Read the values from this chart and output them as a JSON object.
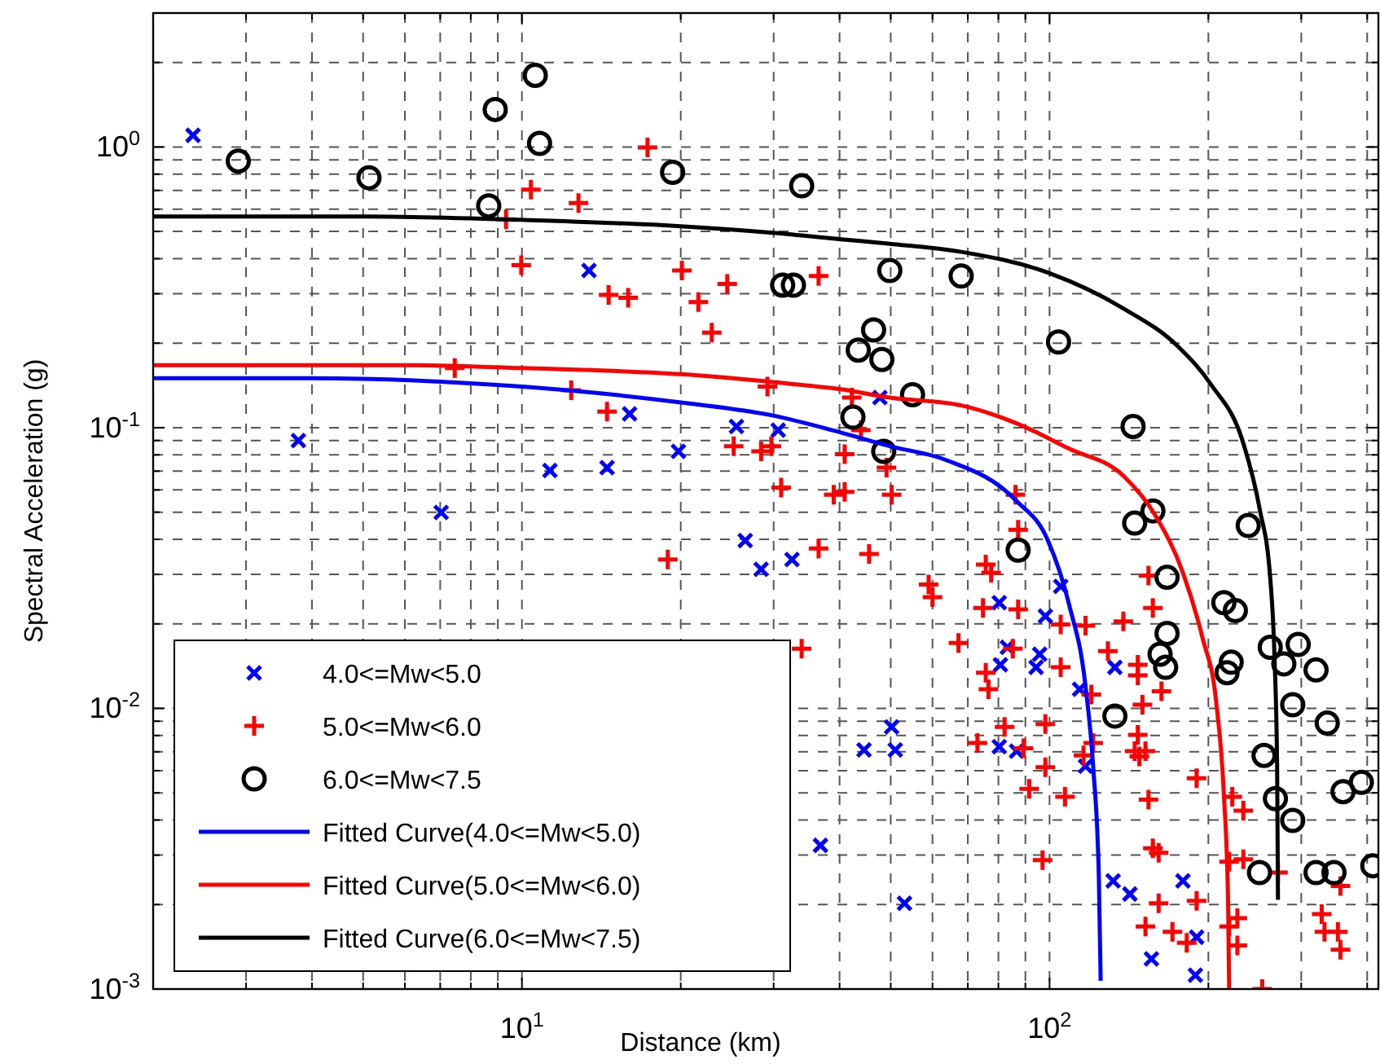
{
  "chart_data": {
    "type": "scatter",
    "xlabel": "Distance (km)",
    "ylabel": "Spectral Acceleration (g)",
    "log": "xy",
    "xlim": [
      2,
      420
    ],
    "ylim": [
      0.001,
      3
    ],
    "xticks": [
      {
        "value": 2,
        "label": null
      },
      {
        "value": 3,
        "label": null
      },
      {
        "value": 4,
        "label": null
      },
      {
        "value": 5,
        "label": null
      },
      {
        "value": 6,
        "label": null
      },
      {
        "value": 7,
        "label": null
      },
      {
        "value": 8,
        "label": null
      },
      {
        "value": 9,
        "label": null
      },
      {
        "value": 10,
        "label": "10$^{1}$"
      },
      {
        "value": 20,
        "label": null
      },
      {
        "value": 30,
        "label": null
      },
      {
        "value": 40,
        "label": null
      },
      {
        "value": 50,
        "label": null
      },
      {
        "value": 60,
        "label": null
      },
      {
        "value": 70,
        "label": null
      },
      {
        "value": 80,
        "label": null
      },
      {
        "value": 90,
        "label": null
      },
      {
        "value": 100,
        "label": "10$^{2}$"
      },
      {
        "value": 200,
        "label": null
      },
      {
        "value": 300,
        "label": null
      },
      {
        "value": 400,
        "label": null
      }
    ],
    "yticks": [
      {
        "value": 0.001,
        "label": "10$^{-3}$"
      },
      {
        "value": 0.002,
        "label": null
      },
      {
        "value": 0.003,
        "label": null
      },
      {
        "value": 0.004,
        "label": null
      },
      {
        "value": 0.005,
        "label": null
      },
      {
        "value": 0.006,
        "label": null
      },
      {
        "value": 0.007,
        "label": null
      },
      {
        "value": 0.008,
        "label": null
      },
      {
        "value": 0.009,
        "label": null
      },
      {
        "value": 0.01,
        "label": "10$^{-2}$"
      },
      {
        "value": 0.02,
        "label": null
      },
      {
        "value": 0.03,
        "label": null
      },
      {
        "value": 0.04,
        "label": null
      },
      {
        "value": 0.05,
        "label": null
      },
      {
        "value": 0.06,
        "label": null
      },
      {
        "value": 0.07,
        "label": null
      },
      {
        "value": 0.08,
        "label": null
      },
      {
        "value": 0.09,
        "label": null
      },
      {
        "value": 0.1,
        "label": "10$^{-1}$"
      },
      {
        "value": 0.2,
        "label": null
      },
      {
        "value": 0.3,
        "label": null
      },
      {
        "value": 0.4,
        "label": null
      },
      {
        "value": 0.5,
        "label": null
      },
      {
        "value": 0.6,
        "label": null
      },
      {
        "value": 0.7,
        "label": null
      },
      {
        "value": 0.8,
        "label": null
      },
      {
        "value": 0.9,
        "label": null
      },
      {
        "value": 1,
        "label": "10$^{0}$"
      },
      {
        "value": 2,
        "label": null
      }
    ],
    "grid": true,
    "legend": "bottom left",
    "series": [
      {
        "name": "4.0<=Mw<5.0",
        "marker": "x",
        "color": "#0000ff",
        "x": [
          2.38,
          3.77,
          11.3,
          7.03,
          13.4,
          16.0,
          25.5,
          30.6,
          19.8,
          47.7,
          14.5,
          26.5,
          28.4,
          32.5,
          50.2,
          44.5,
          51.0,
          36.8,
          53.1,
          105,
          98.2,
          80.3,
          83.2,
          80.7,
          95.8,
          94.3,
          114,
          133,
          80.3,
          86.6,
          117,
          132,
          142,
          179,
          190,
          156,
          189
        ],
        "values": [
          1.1,
          0.09,
          0.0704,
          0.0499,
          0.363,
          0.112,
          0.101,
          0.098,
          0.0823,
          0.128,
          0.072,
          0.0396,
          0.0313,
          0.0339,
          0.00859,
          0.00711,
          0.00711,
          0.00325,
          0.00202,
          0.0272,
          0.0213,
          0.0238,
          0.0165,
          0.0143,
          0.0156,
          0.014,
          0.0117,
          0.014,
          0.0073,
          0.00704,
          0.00622,
          0.00243,
          0.00218,
          0.00243,
          0.00153,
          0.00128,
          0.00112
        ]
      },
      {
        "name": "5.0<=Mw<6.0",
        "marker": "cross",
        "color": "#ff0000",
        "x": [
          10.4,
          9.33,
          9.97,
          7.46,
          12.4,
          12.8,
          17.3,
          20.1,
          14.6,
          15.9,
          21.6,
          24.5,
          22.9,
          36.5,
          14.5,
          29.2,
          42.2,
          43.9,
          25.2,
          28.4,
          29.7,
          40.9,
          49.1,
          31.0,
          39.0,
          40.9,
          50.2,
          18.9,
          36.5,
          45.5,
          59.0,
          60.0,
          67.2,
          33.9,
          73.0,
          86.2,
          87.2,
          75.7,
          77.5,
          74.8,
          87.2,
          85.2,
          75.7,
          76.6,
          105,
          117,
          138,
          157,
          154,
          129,
          105,
          147,
          147,
          163,
          120,
          150,
          82.2,
          98.2,
          89.3,
          116,
          121,
          147,
          145,
          148,
          152,
          98.2,
          91.5,
          107,
          154,
          190,
          222,
          233,
          97.0,
          157,
          161,
          219,
          233,
          271,
          356,
          161,
          190,
          152,
          171,
          182,
          219,
          227,
          227,
          328,
          332,
          352,
          356,
          253
        ],
        "values": [
          0.705,
          0.552,
          0.379,
          0.163,
          0.136,
          0.631,
          0.996,
          0.363,
          0.297,
          0.29,
          0.28,
          0.325,
          0.218,
          0.347,
          0.114,
          0.14,
          0.128,
          0.098,
          0.0859,
          0.0823,
          0.0859,
          0.0804,
          0.072,
          0.0612,
          0.0577,
          0.059,
          0.0577,
          0.0339,
          0.0371,
          0.0355,
          0.0276,
          0.0249,
          0.0171,
          0.0163,
          0.00752,
          0.0577,
          0.0433,
          0.0325,
          0.0304,
          0.0228,
          0.0225,
          0.0163,
          0.0134,
          0.0117,
          0.0199,
          0.0197,
          0.0204,
          0.0228,
          0.0297,
          0.016,
          0.014,
          0.0143,
          0.0131,
          0.0115,
          0.0112,
          0.0103,
          0.00859,
          0.00879,
          0.0072,
          0.0068,
          0.00752,
          0.00804,
          0.00704,
          0.00674,
          0.00704,
          0.00617,
          0.00517,
          0.00484,
          0.00473,
          0.00564,
          0.00484,
          0.00432,
          0.00288,
          0.00317,
          0.00306,
          0.00284,
          0.0029,
          0.0026,
          0.00233,
          0.00202,
          0.00206,
          0.00167,
          0.0016,
          0.00146,
          0.00167,
          0.00179,
          0.00143,
          0.00185,
          0.0016,
          0.0016,
          0.00138,
          0.001
        ]
      },
      {
        "name": "6.0<=Mw<7.5",
        "marker": "circle",
        "color": "#000000",
        "x": [
          2.9,
          5.13,
          8.9,
          10.6,
          10.8,
          8.65,
          19.3,
          33.9,
          31.2,
          32.7,
          49.8,
          68.0,
          46.4,
          43.4,
          48.1,
          55.0,
          42.4,
          48.5,
          104,
          144,
          87.2,
          133,
          157,
          145,
          167,
          167,
          162,
          166,
          238,
          214,
          225,
          221,
          217,
          262,
          278,
          296,
          320,
          289,
          336,
          255,
          268,
          289,
          360,
          390,
          250,
          320,
          346,
          410
        ],
        "values": [
          0.891,
          0.777,
          1.36,
          1.8,
          1.03,
          0.617,
          0.812,
          0.727,
          0.322,
          0.322,
          0.363,
          0.347,
          0.223,
          0.189,
          0.175,
          0.131,
          0.109,
          0.0823,
          0.202,
          0.101,
          0.0366,
          0.00939,
          0.0505,
          0.0457,
          0.0293,
          0.0185,
          0.0156,
          0.014,
          0.0448,
          0.0238,
          0.0223,
          0.0146,
          0.0134,
          0.0165,
          0.0144,
          0.0169,
          0.0137,
          0.0103,
          0.00886,
          0.0068,
          0.00477,
          0.00399,
          0.00505,
          0.00545,
          0.0026,
          0.0026,
          0.0026,
          0.00275
        ]
      },
      {
        "name": "Fitted Curve(4.0<=Mw<5.0)",
        "type": "line",
        "color": "#0000ff",
        "x": [
          2,
          3.99,
          10,
          20.0,
          30.2,
          40.2,
          49.8,
          63.4,
          86.2,
          99.3,
          109,
          117,
          121,
          124,
          125
        ],
        "values": [
          0.15,
          0.15,
          0.14,
          0.123,
          0.11,
          0.0961,
          0.0859,
          0.0769,
          0.0552,
          0.0396,
          0.0233,
          0.012,
          0.00617,
          0.00254,
          0.00107
        ]
      },
      {
        "name": "Fitted Curve(5.0<=Mw<6.0)",
        "type": "line",
        "color": "#ff0000",
        "x": [
          2,
          6.01,
          10,
          20.0,
          30.2,
          40.2,
          49.8,
          68.0,
          86.2,
          109,
          138,
          159,
          179,
          195,
          207,
          214,
          218,
          219
        ],
        "values": [
          0.167,
          0.167,
          0.163,
          0.155,
          0.145,
          0.137,
          0.128,
          0.12,
          0.104,
          0.0841,
          0.0674,
          0.0484,
          0.0304,
          0.0178,
          0.0105,
          0.00494,
          0.00204,
          0.001
        ]
      },
      {
        "name": "Fitted Curve(6.0<=Mw<7.5)",
        "type": "line",
        "color": "#000000",
        "x": [
          2,
          5.11,
          10,
          20.0,
          30.2,
          40.2,
          49.8,
          68.0,
          100,
          138,
          175,
          202,
          233,
          250,
          262,
          267,
          270,
          271
        ],
        "values": [
          0.565,
          0.565,
          0.55,
          0.522,
          0.494,
          0.469,
          0.452,
          0.423,
          0.355,
          0.266,
          0.195,
          0.143,
          0.0879,
          0.0517,
          0.0291,
          0.015,
          0.00617,
          0.00208
        ]
      }
    ]
  }
}
